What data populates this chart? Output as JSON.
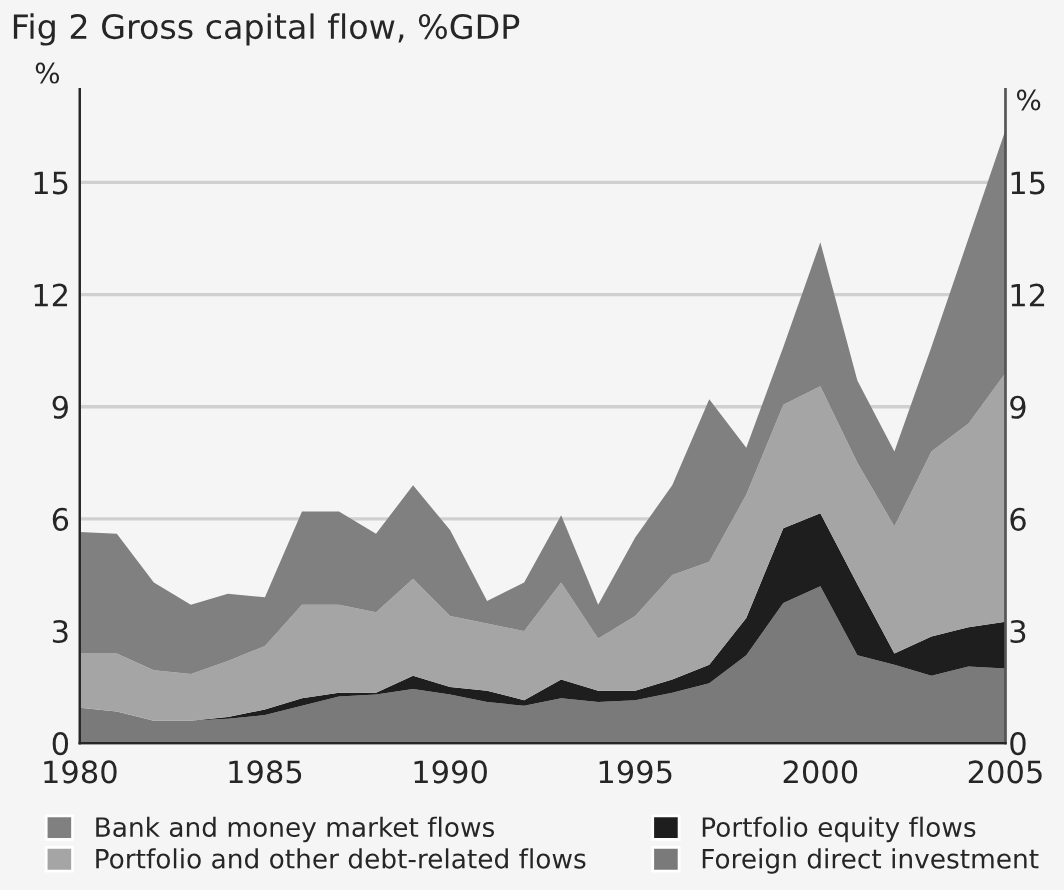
{
  "chart_data": {
    "type": "area",
    "stacked": true,
    "title": "Fig 2 Gross capital flow, %GDP",
    "ylabel": "%",
    "y2label": "%",
    "x": [
      1980,
      1981,
      1982,
      1983,
      1984,
      1985,
      1986,
      1987,
      1988,
      1989,
      1990,
      1991,
      1992,
      1993,
      1994,
      1995,
      1996,
      1997,
      1998,
      1999,
      2000,
      2001,
      2002,
      2003,
      2004,
      2005
    ],
    "series": [
      {
        "name": "Foreign direct investment",
        "color": "#7a7a7a",
        "values": [
          0.95,
          0.85,
          0.6,
          0.6,
          0.65,
          0.75,
          1.0,
          1.25,
          1.3,
          1.45,
          1.3,
          1.1,
          1.0,
          1.2,
          1.1,
          1.15,
          1.35,
          1.6,
          2.35,
          3.75,
          4.2,
          2.35,
          2.1,
          1.8,
          2.05,
          2.0
        ]
      },
      {
        "name": "Portfolio equity flows",
        "color": "#1e1e1e",
        "values": [
          0.0,
          0.0,
          0.0,
          0.0,
          0.05,
          0.15,
          0.2,
          0.1,
          0.05,
          0.35,
          0.2,
          0.3,
          0.15,
          0.5,
          0.3,
          0.25,
          0.35,
          0.5,
          1.0,
          2.0,
          1.95,
          1.9,
          0.3,
          1.05,
          1.05,
          1.25
        ]
      },
      {
        "name": "Portfolio and other debt-related flows",
        "color": "#a5a5a5",
        "values": [
          1.45,
          1.55,
          1.35,
          1.25,
          1.5,
          1.7,
          2.5,
          2.35,
          2.15,
          2.6,
          1.9,
          1.8,
          1.85,
          2.6,
          1.4,
          2.0,
          2.8,
          2.75,
          3.3,
          3.3,
          3.4,
          3.25,
          3.4,
          4.95,
          5.45,
          6.65
        ]
      },
      {
        "name": "Bank and money market flows",
        "color": "#808080",
        "values": [
          3.25,
          3.2,
          2.35,
          1.85,
          1.8,
          1.3,
          2.5,
          2.5,
          2.1,
          2.5,
          2.3,
          0.6,
          1.3,
          1.8,
          0.9,
          2.1,
          2.4,
          4.35,
          1.25,
          1.55,
          3.85,
          2.2,
          2.0,
          2.8,
          4.95,
          6.5
        ]
      }
    ],
    "xlim": [
      1980,
      2005
    ],
    "xticks": [
      1980,
      1985,
      1990,
      1995,
      2000,
      2005
    ],
    "ylim": [
      0,
      17.5
    ],
    "yticks": [
      0,
      3,
      6,
      9,
      12,
      15
    ],
    "y2lim": [
      0,
      17.5
    ],
    "y2ticks": [
      0,
      3,
      6,
      9,
      12,
      15
    ],
    "grid": "y",
    "legend": "bottom"
  }
}
